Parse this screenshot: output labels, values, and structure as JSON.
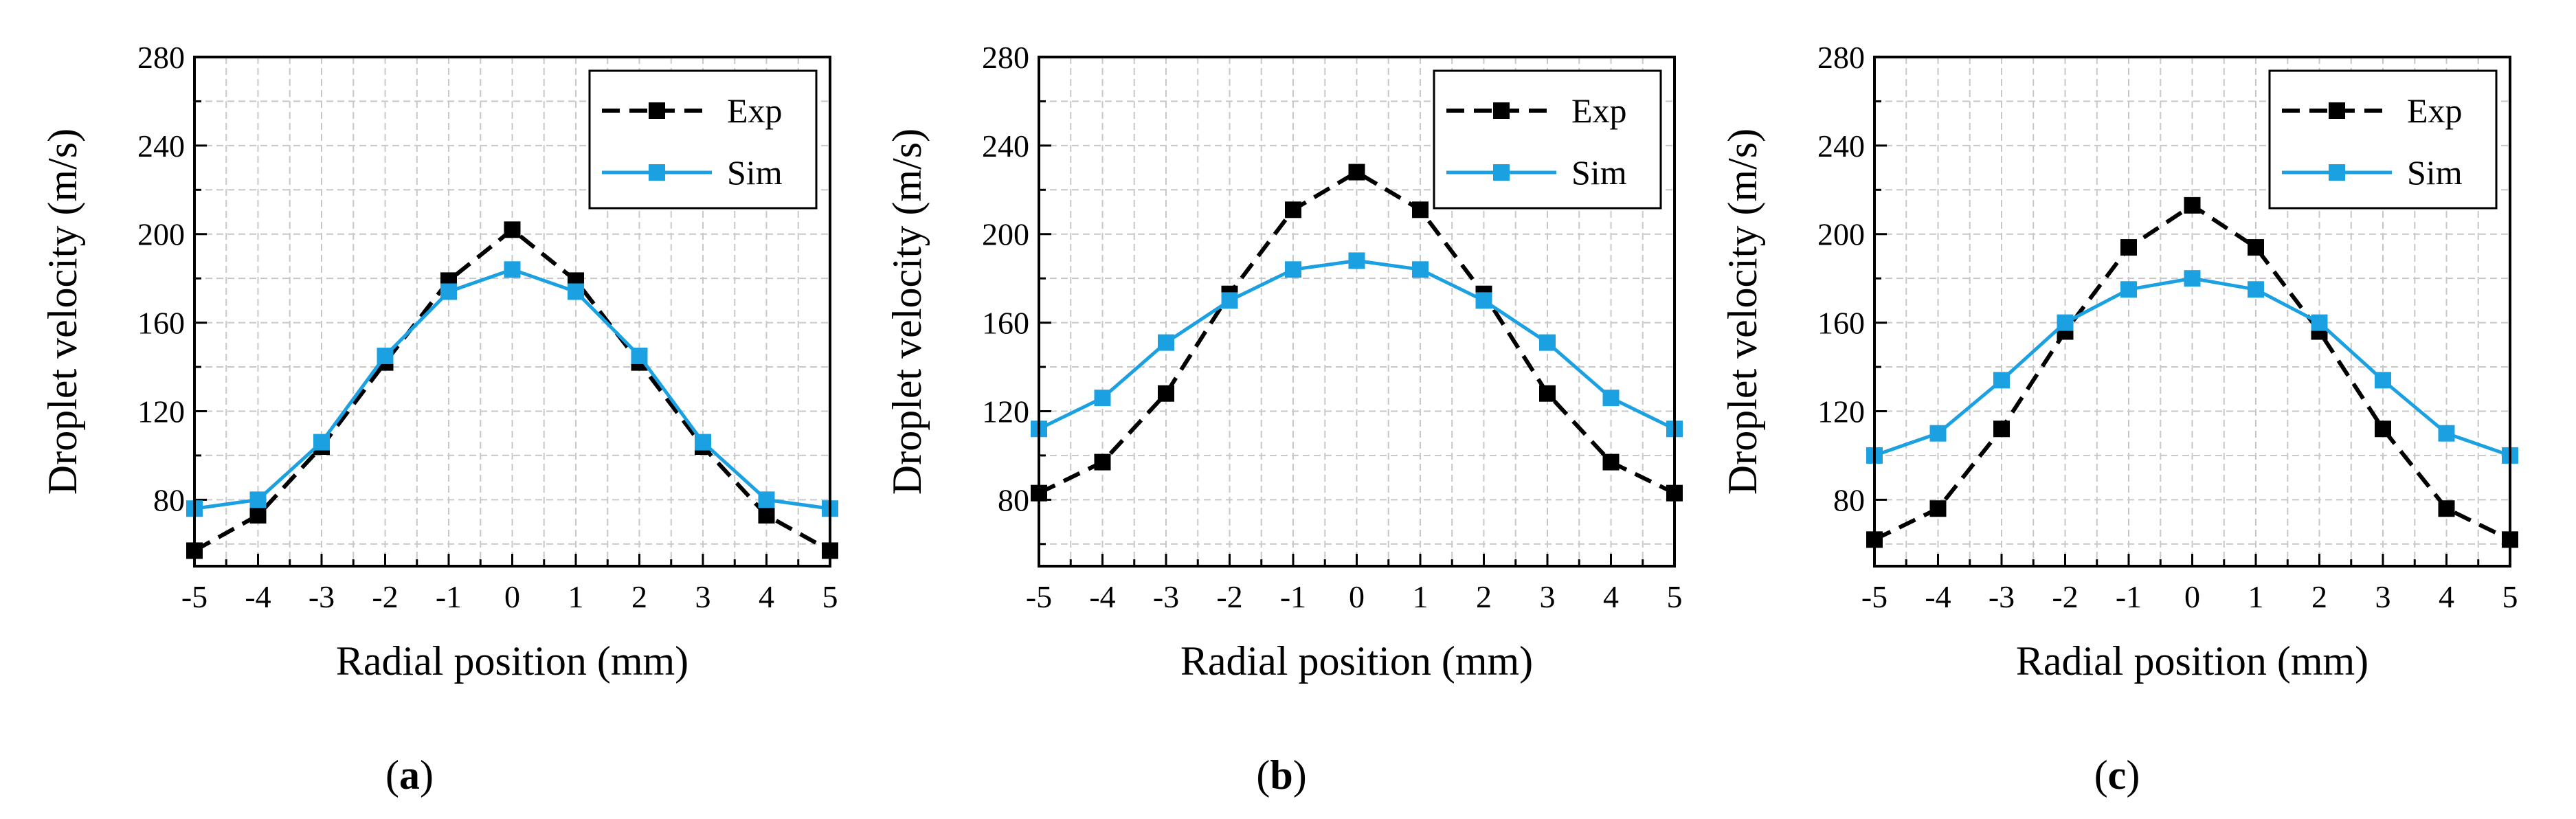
{
  "chart_data": [
    {
      "type": "line",
      "caption": "a",
      "xlabel": "Radial position (mm)",
      "ylabel": "Droplet velocity (m/s)",
      "x": [
        -5,
        -4,
        -3,
        -2,
        -1,
        0,
        1,
        2,
        3,
        4,
        5
      ],
      "x_tick_labels": [
        "-5",
        "-4",
        "-3",
        "-2",
        "-1",
        "0",
        "1",
        "2",
        "3",
        "4",
        "5"
      ],
      "xlim": [
        -5,
        5
      ],
      "ylim": [
        50,
        280
      ],
      "y_ticks": [
        80,
        120,
        160,
        200,
        240,
        280
      ],
      "y_tick_labels": [
        "80",
        "120",
        "160",
        "200",
        "240",
        "280"
      ],
      "grid": true,
      "legend_position": "top-right",
      "series": [
        {
          "name": "Exp",
          "style": "dashed",
          "color": "#000000",
          "values": [
            57,
            73,
            104,
            142,
            179,
            202,
            179,
            142,
            104,
            73,
            57
          ]
        },
        {
          "name": "Sim",
          "style": "solid",
          "color": "#1ba1e2",
          "values": [
            76,
            80,
            106,
            145,
            174,
            184,
            174,
            145,
            106,
            80,
            76
          ]
        }
      ]
    },
    {
      "type": "line",
      "caption": "b",
      "xlabel": "Radial position (mm)",
      "ylabel": "Droplet velocity (m/s)",
      "x": [
        -5,
        -4,
        -3,
        -2,
        -1,
        0,
        1,
        2,
        3,
        4,
        5
      ],
      "x_tick_labels": [
        "-5",
        "-4",
        "-3",
        "-2",
        "-1",
        "0",
        "1",
        "2",
        "3",
        "4",
        "5"
      ],
      "xlim": [
        -5,
        5
      ],
      "ylim": [
        50,
        280
      ],
      "y_ticks": [
        80,
        120,
        160,
        200,
        240,
        280
      ],
      "y_tick_labels": [
        "80",
        "120",
        "160",
        "200",
        "240",
        "280"
      ],
      "grid": true,
      "legend_position": "top-right",
      "series": [
        {
          "name": "Exp",
          "style": "dashed",
          "color": "#000000",
          "values": [
            83,
            97,
            128,
            173,
            211,
            228,
            211,
            173,
            128,
            97,
            83
          ]
        },
        {
          "name": "Sim",
          "style": "solid",
          "color": "#1ba1e2",
          "values": [
            112,
            126,
            151,
            170,
            184,
            188,
            184,
            170,
            151,
            126,
            112
          ]
        }
      ]
    },
    {
      "type": "line",
      "caption": "c",
      "xlabel": "Radial position (mm)",
      "ylabel": "Droplet velocity (m/s)",
      "x": [
        -5,
        -4,
        -3,
        -2,
        -1,
        0,
        1,
        2,
        3,
        4,
        5
      ],
      "x_tick_labels": [
        "-5",
        "-4",
        "-3",
        "-2",
        "-1",
        "0",
        "1",
        "2",
        "3",
        "4",
        "5"
      ],
      "xlim": [
        -5,
        5
      ],
      "ylim": [
        50,
        280
      ],
      "y_ticks": [
        80,
        120,
        160,
        200,
        240,
        280
      ],
      "y_tick_labels": [
        "80",
        "120",
        "160",
        "200",
        "240",
        "280"
      ],
      "grid": true,
      "legend_position": "top-right",
      "series": [
        {
          "name": "Exp",
          "style": "dashed",
          "color": "#000000",
          "values": [
            62,
            76,
            112,
            156,
            194,
            213,
            194,
            156,
            112,
            76,
            62
          ]
        },
        {
          "name": "Sim",
          "style": "solid",
          "color": "#1ba1e2",
          "values": [
            100,
            110,
            134,
            160,
            175,
            180,
            175,
            160,
            134,
            110,
            100
          ]
        }
      ]
    }
  ]
}
